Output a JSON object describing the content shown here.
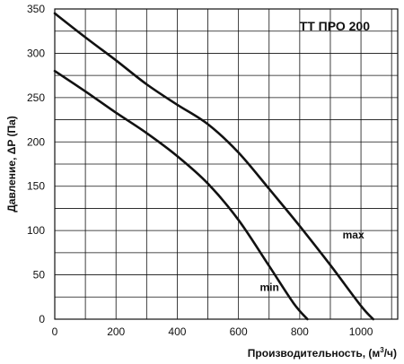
{
  "chart_data": {
    "type": "line",
    "title": "TT ПРО 200",
    "xlabel": "Производительность, (м³/ч)",
    "ylabel": "Давление, ΔP (Па)",
    "xlim": [
      0,
      1120
    ],
    "ylim": [
      0,
      350
    ],
    "x_ticks": [
      0,
      200,
      400,
      600,
      800,
      1000
    ],
    "y_ticks": [
      0,
      50,
      100,
      150,
      200,
      250,
      300,
      350
    ],
    "x_grid": [
      0,
      100,
      200,
      300,
      400,
      500,
      600,
      700,
      800,
      900,
      1000,
      1100
    ],
    "y_grid": [
      0,
      25,
      50,
      75,
      100,
      125,
      150,
      175,
      200,
      225,
      250,
      275,
      300,
      325,
      350
    ],
    "grid": true,
    "series": [
      {
        "name": "max",
        "points": [
          [
            0,
            345
          ],
          [
            100,
            318
          ],
          [
            200,
            292
          ],
          [
            300,
            265
          ],
          [
            400,
            242
          ],
          [
            500,
            220
          ],
          [
            600,
            188
          ],
          [
            700,
            147
          ],
          [
            800,
            105
          ],
          [
            900,
            61
          ],
          [
            1000,
            15
          ],
          [
            1040,
            0
          ]
        ]
      },
      {
        "name": "min",
        "points": [
          [
            0,
            280
          ],
          [
            100,
            257
          ],
          [
            200,
            233
          ],
          [
            300,
            210
          ],
          [
            400,
            184
          ],
          [
            500,
            153
          ],
          [
            600,
            112
          ],
          [
            700,
            60
          ],
          [
            780,
            18
          ],
          [
            825,
            0
          ]
        ]
      }
    ],
    "labels": [
      {
        "text": "max",
        "x": 940,
        "y": 91
      },
      {
        "text": "min",
        "x": 670,
        "y": 32
      }
    ]
  }
}
